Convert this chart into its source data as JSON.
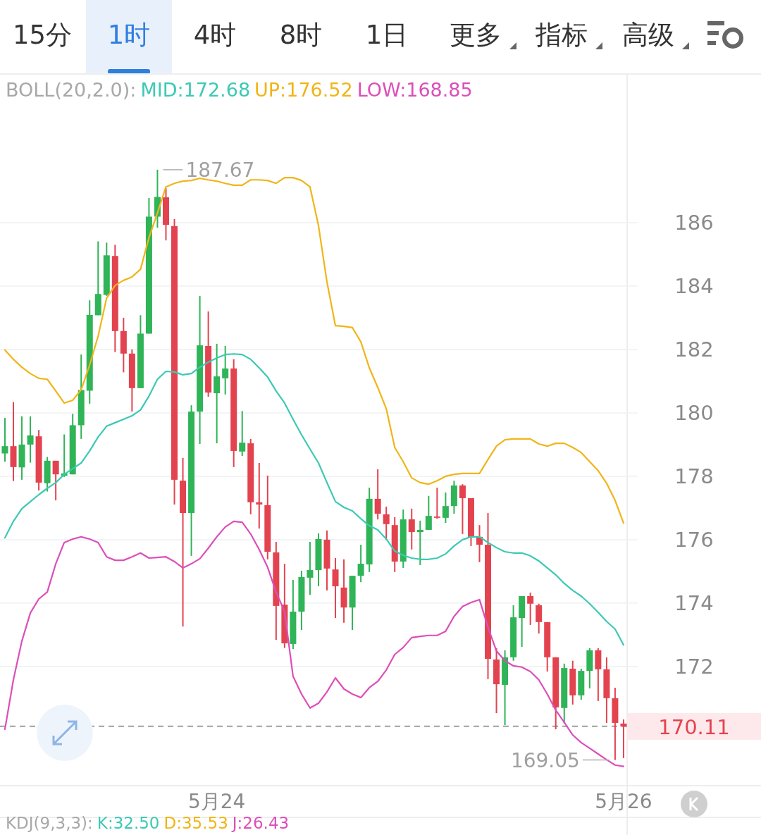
{
  "chart_data": {
    "type": "candlestick",
    "categories": [
      null,
      null,
      null,
      null,
      null,
      null,
      null,
      null,
      null,
      null,
      null,
      null,
      null,
      null,
      null,
      null,
      null,
      null,
      null,
      null,
      null,
      null,
      null,
      null,
      null,
      "5月24",
      null,
      null,
      null,
      null,
      null,
      null,
      null,
      null,
      null,
      null,
      null,
      null,
      null,
      null,
      null,
      null,
      null,
      null,
      null,
      null,
      null,
      null,
      null,
      null,
      null,
      null,
      null,
      null,
      null,
      null,
      null,
      null,
      null,
      null,
      null,
      null,
      null,
      null,
      null,
      null,
      null,
      null,
      null,
      null,
      null,
      null,
      null,
      "5月26"
    ],
    "ohlc": [
      [
        178.72,
        179.84,
        178.46,
        178.95
      ],
      [
        178.95,
        180.34,
        177.85,
        178.29
      ],
      [
        178.28,
        179.89,
        177.89,
        179.0
      ],
      [
        179.0,
        179.89,
        178.43,
        179.29
      ],
      [
        179.26,
        179.46,
        177.55,
        177.8
      ],
      [
        177.78,
        178.61,
        177.52,
        178.49
      ],
      [
        178.49,
        178.49,
        177.24,
        178.06
      ],
      [
        178.02,
        179.32,
        177.98,
        178.09
      ],
      [
        178.06,
        179.97,
        178.06,
        179.61
      ],
      [
        179.61,
        181.84,
        179.18,
        180.72
      ],
      [
        180.7,
        183.55,
        180.29,
        183.09
      ],
      [
        183.08,
        185.41,
        183.08,
        183.75
      ],
      [
        183.72,
        185.37,
        183.69,
        184.97
      ],
      [
        184.95,
        185.3,
        181.92,
        182.58
      ],
      [
        182.58,
        183.0,
        181.28,
        181.87
      ],
      [
        181.87,
        182.0,
        180.04,
        180.78
      ],
      [
        180.78,
        183.08,
        180.78,
        182.5
      ],
      [
        182.5,
        186.78,
        182.5,
        186.19
      ],
      [
        186.19,
        187.67,
        185.84,
        186.81
      ],
      [
        186.8,
        187.09,
        185.44,
        185.93
      ],
      [
        185.89,
        186.11,
        177.11,
        177.89
      ],
      [
        177.86,
        178.58,
        173.26,
        176.84
      ],
      [
        176.84,
        180.24,
        175.49,
        180.04
      ],
      [
        180.04,
        183.69,
        179.02,
        182.13
      ],
      [
        182.11,
        183.2,
        180.51,
        180.64
      ],
      [
        180.62,
        182.18,
        179.04,
        181.15
      ],
      [
        181.09,
        182.11,
        180.58,
        181.4
      ],
      [
        181.4,
        181.69,
        178.29,
        178.8
      ],
      [
        178.78,
        180.06,
        178.64,
        179.06
      ],
      [
        179.04,
        179.18,
        176.8,
        177.18
      ],
      [
        177.18,
        178.42,
        176.35,
        177.11
      ],
      [
        177.09,
        178.02,
        175.38,
        175.62
      ],
      [
        175.6,
        175.93,
        172.84,
        173.91
      ],
      [
        173.95,
        175.24,
        172.58,
        172.73
      ],
      [
        172.71,
        174.73,
        172.55,
        173.73
      ],
      [
        173.73,
        175.02,
        173.15,
        174.82
      ],
      [
        174.8,
        175.93,
        174.26,
        175.04
      ],
      [
        175.04,
        176.2,
        174.53,
        176.02
      ],
      [
        176.0,
        176.29,
        174.4,
        175.09
      ],
      [
        175.06,
        175.42,
        173.53,
        174.53
      ],
      [
        174.49,
        175.38,
        173.38,
        173.86
      ],
      [
        173.86,
        174.86,
        173.15,
        174.86
      ],
      [
        174.86,
        175.84,
        174.66,
        175.24
      ],
      [
        175.22,
        177.64,
        174.98,
        177.29
      ],
      [
        177.29,
        178.22,
        176.64,
        176.82
      ],
      [
        176.8,
        177.04,
        175.98,
        176.49
      ],
      [
        176.46,
        176.71,
        174.98,
        175.31
      ],
      [
        175.31,
        176.95,
        175.11,
        176.64
      ],
      [
        176.64,
        176.98,
        175.69,
        176.24
      ],
      [
        176.24,
        176.6,
        175.2,
        176.31
      ],
      [
        176.31,
        177.38,
        176.31,
        176.75
      ],
      [
        176.73,
        177.64,
        176.66,
        176.69
      ],
      [
        176.69,
        177.49,
        176.53,
        177.06
      ],
      [
        177.06,
        177.86,
        176.82,
        177.71
      ],
      [
        177.71,
        177.75,
        176.18,
        177.31
      ],
      [
        177.31,
        177.31,
        175.8,
        176.09
      ],
      [
        176.09,
        176.46,
        175.29,
        175.84
      ],
      [
        175.84,
        176.84,
        171.6,
        172.24
      ],
      [
        172.22,
        172.58,
        170.53,
        171.44
      ],
      [
        171.42,
        172.51,
        170.15,
        172.29
      ],
      [
        172.29,
        173.93,
        172.18,
        173.55
      ],
      [
        173.53,
        174.22,
        172.62,
        174.22
      ],
      [
        174.22,
        174.33,
        173.31,
        173.98
      ],
      [
        173.93,
        173.98,
        173.04,
        173.4
      ],
      [
        173.4,
        173.4,
        171.84,
        172.29
      ],
      [
        172.29,
        172.29,
        170.02,
        170.71
      ],
      [
        170.69,
        172.09,
        170.2,
        171.95
      ],
      [
        171.93,
        172.18,
        170.8,
        171.09
      ],
      [
        171.09,
        171.93,
        170.95,
        171.86
      ],
      [
        171.86,
        172.58,
        171.31,
        172.51
      ],
      [
        172.51,
        172.58,
        170.91,
        171.91
      ],
      [
        171.91,
        172.29,
        170.22,
        171.0
      ],
      [
        171.0,
        171.33,
        169.05,
        170.22
      ],
      [
        170.2,
        170.33,
        169.11,
        170.11
      ]
    ],
    "colors": [
      "#2fb457",
      "#e3434f",
      "#2fb457",
      "#2fb457",
      "#e3434f",
      "#2fb457",
      "#e3434f",
      "#2fb457",
      "#2fb457",
      "#2fb457",
      "#2fb457",
      "#2fb457",
      "#2fb457",
      "#e3434f",
      "#e3434f",
      "#e3434f",
      "#2fb457",
      "#2fb457",
      "#2fb457",
      "#e3434f",
      "#e3434f",
      "#e3434f",
      "#2fb457",
      "#2fb457",
      "#e3434f",
      "#2fb457",
      "#2fb457",
      "#e3434f",
      "#2fb457",
      "#e3434f",
      "#e3434f",
      "#e3434f",
      "#e3434f",
      "#e3434f",
      "#2fb457",
      "#2fb457",
      "#2fb457",
      "#2fb457",
      "#e3434f",
      "#e3434f",
      "#e3434f",
      "#2fb457",
      "#2fb457",
      "#2fb457",
      "#e3434f",
      "#e3434f",
      "#e3434f",
      "#2fb457",
      "#e3434f",
      "#2fb457",
      "#2fb457",
      "#e3434f",
      "#2fb457",
      "#2fb457",
      "#e3434f",
      "#e3434f",
      "#e3434f",
      "#e3434f",
      "#e3434f",
      "#2fb457",
      "#2fb457",
      "#2fb457",
      "#e3434f",
      "#e3434f",
      "#e3434f",
      "#e3434f",
      "#2fb457",
      "#e3434f",
      "#2fb457",
      "#2fb457",
      "#e3434f",
      "#e3434f",
      "#e3434f",
      "#e3434f"
    ],
    "legend_title": "BOLL(20,2.0):",
    "series": [
      {
        "name": "MID:172.68",
        "type": "line",
        "color": "#3cc9b5",
        "values": [
          176.06,
          176.58,
          176.98,
          177.2,
          177.42,
          177.62,
          177.8,
          178.06,
          178.24,
          178.42,
          178.8,
          179.24,
          179.58,
          179.69,
          179.8,
          179.91,
          180.09,
          180.53,
          181.06,
          181.31,
          181.29,
          181.2,
          181.24,
          181.44,
          181.6,
          181.73,
          181.84,
          181.86,
          181.84,
          181.69,
          181.42,
          181.13,
          180.69,
          180.31,
          179.8,
          179.31,
          178.86,
          178.42,
          177.8,
          177.2,
          177.02,
          176.91,
          176.66,
          176.44,
          176.31,
          176.02,
          175.64,
          175.51,
          175.42,
          175.38,
          175.38,
          175.42,
          175.55,
          175.8,
          176.0,
          176.09,
          176.09,
          175.91,
          175.75,
          175.62,
          175.58,
          175.58,
          175.49,
          175.33,
          175.11,
          174.89,
          174.62,
          174.4,
          174.22,
          173.98,
          173.71,
          173.42,
          173.18,
          172.68
        ]
      },
      {
        "name": "UP:176.52",
        "type": "line",
        "color": "#f0b518",
        "values": [
          181.98,
          181.69,
          181.44,
          181.24,
          181.09,
          181.06,
          180.69,
          180.31,
          180.4,
          180.73,
          181.51,
          182.42,
          183.62,
          184.02,
          184.18,
          184.29,
          184.53,
          185.53,
          186.31,
          187.13,
          187.24,
          187.31,
          187.33,
          187.4,
          187.35,
          187.31,
          187.24,
          187.18,
          187.18,
          187.35,
          187.35,
          187.33,
          187.24,
          187.42,
          187.42,
          187.33,
          187.13,
          185.91,
          184.13,
          182.75,
          182.73,
          182.69,
          182.24,
          181.42,
          180.8,
          180.13,
          178.91,
          178.46,
          177.95,
          177.8,
          177.75,
          177.86,
          178.0,
          178.06,
          178.09,
          178.09,
          178.09,
          178.53,
          178.95,
          179.15,
          179.18,
          179.18,
          179.18,
          179.02,
          178.95,
          179.04,
          179.04,
          178.91,
          178.75,
          178.46,
          178.18,
          177.78,
          177.24,
          176.52
        ]
      },
      {
        "name": "LOW:168.85",
        "type": "line",
        "color": "#dc4fb9",
        "values": [
          170.02,
          171.58,
          172.8,
          173.69,
          174.13,
          174.35,
          175.24,
          175.91,
          176.02,
          176.09,
          176.02,
          175.91,
          175.46,
          175.35,
          175.35,
          175.46,
          175.58,
          175.42,
          175.44,
          175.46,
          175.31,
          175.11,
          175.24,
          175.4,
          175.73,
          176.09,
          176.4,
          176.58,
          176.55,
          176.18,
          175.69,
          175.13,
          174.35,
          173.73,
          171.69,
          171.13,
          170.69,
          170.84,
          171.2,
          171.64,
          171.29,
          171.13,
          171.02,
          171.33,
          171.53,
          171.89,
          172.38,
          172.6,
          172.91,
          172.95,
          172.98,
          172.98,
          173.11,
          173.58,
          173.89,
          174.02,
          174.11,
          173.24,
          172.49,
          172.18,
          172.02,
          171.98,
          171.84,
          171.58,
          171.13,
          170.62,
          170.24,
          169.84,
          169.6,
          169.42,
          169.24,
          169.06,
          168.89,
          168.85
        ]
      }
    ],
    "ylim": [
      168.24,
      190.69
    ],
    "yticks": [
      172,
      174,
      176,
      178,
      180,
      182,
      184,
      186
    ],
    "grid": "y",
    "legend": "top",
    "ref_lines": [
      {
        "axis": "y",
        "value": 170.11,
        "label": "170.11",
        "color": "#a0a0a0",
        "line_style": "dashed"
      }
    ],
    "annotations": [
      "15分",
      "1时",
      "4时",
      "8时",
      "1日",
      "更多",
      "指标",
      "高级",
      "187.67",
      "169.05",
      "KDJ(9,3,3):",
      "K:32.50",
      "D:35.53",
      "J:26.43"
    ]
  }
}
